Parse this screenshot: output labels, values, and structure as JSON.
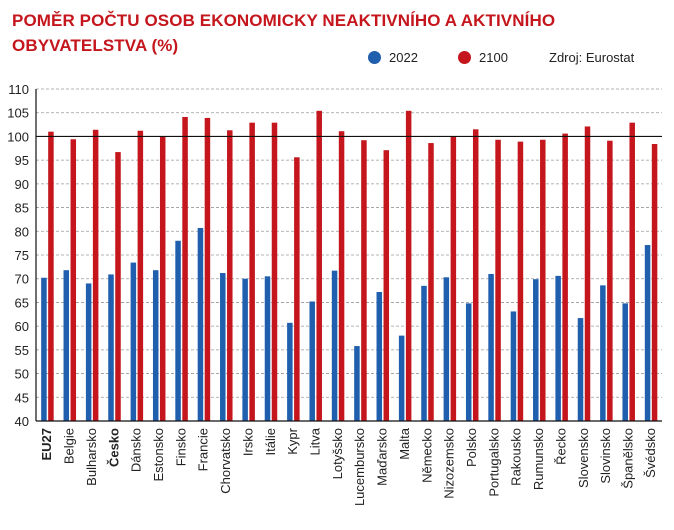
{
  "title": "POMĚR POČTU OSOB EKONOMICKY NEAKTIVNÍHO A AKTIVNÍHO OBYVATELSTVA (%)",
  "source": "Zdroj: Eurostat",
  "colors": {
    "2022": "#1f5fae",
    "2100": "#c4161c",
    "title": "#c4161c"
  },
  "chart_data": {
    "type": "bar",
    "title": "POMĚR POČTU OSOB EKONOMICKY NEAKTIVNÍHO A AKTIVNÍHO OBYVATELSTVA (%)",
    "categories": [
      "EU27",
      "Belgie",
      "Bulharsko",
      "Česko",
      "Dánsko",
      "Estonsko",
      "Finsko",
      "Francie",
      "Chorvatsko",
      "Irsko",
      "Itálie",
      "Kypr",
      "Litva",
      "Lotyšsko",
      "Lucembursko",
      "Maďarsko",
      "Malta",
      "Německo",
      "Nizozemsko",
      "Polsko",
      "Portugalsko",
      "Rakousko",
      "Rumunsko",
      "Řecko",
      "Slovensko",
      "Slovinsko",
      "Španělsko",
      "Švédsko"
    ],
    "bold_categories": [
      "EU27",
      "Česko"
    ],
    "series": [
      {
        "name": "2022",
        "values": [
          70.2,
          71.8,
          69.0,
          70.9,
          73.4,
          71.8,
          78.0,
          80.7,
          71.2,
          70.0,
          70.5,
          60.7,
          65.2,
          71.7,
          55.8,
          67.2,
          58.0,
          68.5,
          70.3,
          64.8,
          71.0,
          63.1,
          69.9,
          70.6,
          61.7,
          68.6,
          64.8,
          77.1
        ]
      },
      {
        "name": "2100",
        "values": [
          101.0,
          99.4,
          101.4,
          96.7,
          101.2,
          99.9,
          104.1,
          103.9,
          101.3,
          102.9,
          102.9,
          95.6,
          105.4,
          101.1,
          99.2,
          97.1,
          105.4,
          98.6,
          99.9,
          101.5,
          99.3,
          98.9,
          99.3,
          100.6,
          102.1,
          99.1,
          102.9,
          98.4
        ]
      }
    ],
    "ylim": [
      40,
      110
    ],
    "yticks": [
      40,
      45,
      50,
      55,
      60,
      65,
      70,
      75,
      80,
      85,
      90,
      95,
      100,
      105,
      110
    ],
    "reference_line": 100,
    "grid": true,
    "legend_position": "top-right"
  }
}
